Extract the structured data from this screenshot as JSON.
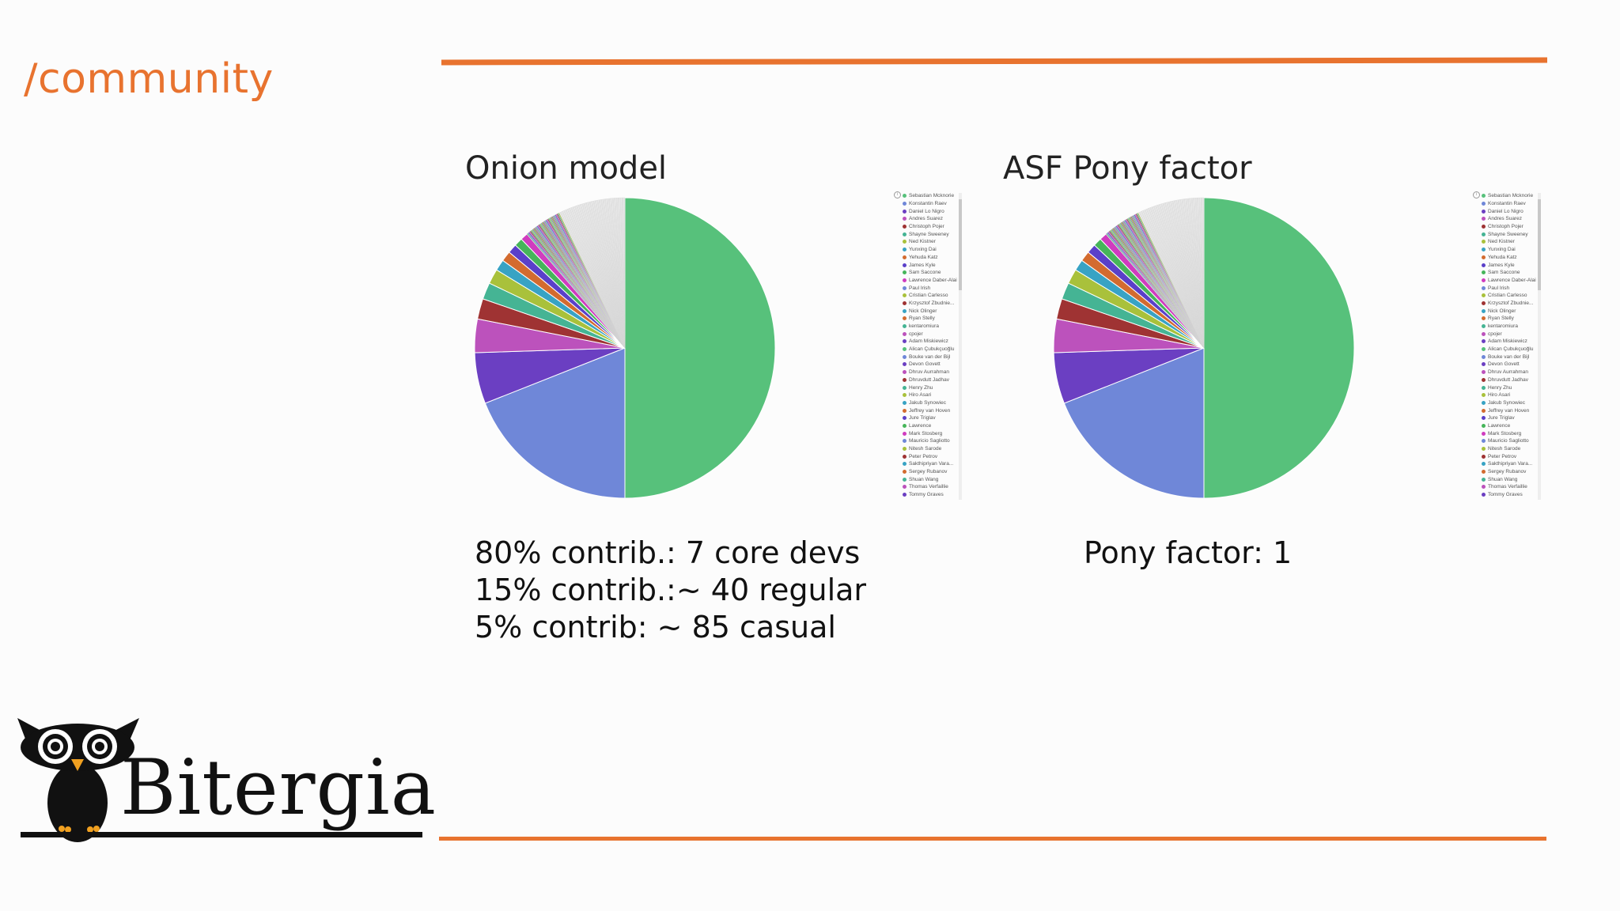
{
  "slide": {
    "title": "/community"
  },
  "colors": {
    "accent": "#e8732f"
  },
  "panels": [
    {
      "title": "Onion model",
      "stats": [
        "80% contrib.: 7 core devs",
        "15% contrib.:~ 40 regular",
        "5% contrib: ~ 85 casual"
      ]
    },
    {
      "title": "ASF Pony factor",
      "stats": [
        "Pony factor: 1"
      ]
    }
  ],
  "chart_data": [
    {
      "type": "pie",
      "title": "Onion model",
      "major_slices": [
        {
          "value": 50.0,
          "color": "#57c17b"
        },
        {
          "value": 19.0,
          "color": "#6f87d8"
        },
        {
          "value": 5.5,
          "color": "#6b3fc2"
        },
        {
          "value": 3.6,
          "color": "#bc52bc"
        },
        {
          "value": 2.2,
          "color": "#9f3333"
        },
        {
          "value": 1.8,
          "color": "#45b494"
        },
        {
          "value": 1.6,
          "color": "#a9c13b"
        },
        {
          "value": 1.2,
          "color": "#38a3c4"
        },
        {
          "value": 1.1,
          "color": "#d36b2f"
        },
        {
          "value": 1.0,
          "color": "#5a40c9"
        },
        {
          "value": 0.9,
          "color": "#46b55a"
        },
        {
          "value": 0.8,
          "color": "#d03cbf"
        }
      ],
      "minor_slice_count": 110,
      "minor_slices_total": 11.3,
      "legend": [
        "Sebastian Mcknorie",
        "Konstantin Raev",
        "Daniel Lo Nigro",
        "Andres Suarez",
        "Christoph Pojer",
        "Shayne Sweeney",
        "Ned Kistner",
        "Yunxing Dai",
        "Yehuda Katz",
        "James Kyle",
        "Sam Saccone",
        "Lawrence Daber-Alai",
        "Paul Irish",
        "Cristian Carlesso",
        "Krzysztof Zbudnie...",
        "Nick Olinger",
        "Ryan Stelly",
        "kentaromiura",
        "cpojer",
        "Adam Miskiewicz",
        "Alican Çubukçuoğlu",
        "Bouke van der Bijl",
        "Devon Govett",
        "Dhruv Aurrahman",
        "Dhruvdutt Jadhav",
        "Henry Zhu",
        "Hiro Asari",
        "Jakub Synowiec",
        "Jeffrey van Hoven",
        "Jure Triglav",
        "Lawrence",
        "Mark Stosberg",
        "Mauricio Sagliotto",
        "Nitesh Sarode",
        "Peter Petrov",
        "Sakthipriyan Vara...",
        "Sergey Rubanov",
        "Shuan Wang",
        "Thomas Verfaillie",
        "Tommy Graves"
      ],
      "legend_colors": [
        "#57c17b",
        "#6f87d8",
        "#6b3fc2",
        "#bc52bc",
        "#9f3333",
        "#45b494",
        "#a9c13b",
        "#38a3c4",
        "#d36b2f",
        "#5a40c9",
        "#46b55a",
        "#d03cbf",
        "#6f87d8",
        "#a9c13b",
        "#9f3333",
        "#38a3c4",
        "#d36b2f",
        "#45b494",
        "#bc52bc",
        "#6b3fc2"
      ]
    },
    {
      "type": "pie",
      "title": "ASF Pony factor",
      "major_slices": [
        {
          "value": 50.0,
          "color": "#57c17b"
        },
        {
          "value": 19.0,
          "color": "#6f87d8"
        },
        {
          "value": 5.5,
          "color": "#6b3fc2"
        },
        {
          "value": 3.6,
          "color": "#bc52bc"
        },
        {
          "value": 2.2,
          "color": "#9f3333"
        },
        {
          "value": 1.8,
          "color": "#45b494"
        },
        {
          "value": 1.6,
          "color": "#a9c13b"
        },
        {
          "value": 1.2,
          "color": "#38a3c4"
        },
        {
          "value": 1.1,
          "color": "#d36b2f"
        },
        {
          "value": 1.0,
          "color": "#5a40c9"
        },
        {
          "value": 0.9,
          "color": "#46b55a"
        },
        {
          "value": 0.8,
          "color": "#d03cbf"
        }
      ],
      "minor_slice_count": 110,
      "minor_slices_total": 11.3,
      "legend": [
        "Sebastian Mcknorie",
        "Konstantin Raev",
        "Daniel Lo Nigro",
        "Andres Suarez",
        "Christoph Pojer",
        "Shayne Sweeney",
        "Ned Kistner",
        "Yunxing Dai",
        "Yehuda Katz",
        "James Kyle",
        "Sam Saccone",
        "Lawrence Daber-Alai",
        "Paul Irish",
        "Cristian Carlesso",
        "Krzysztof Zbudnie...",
        "Nick Olinger",
        "Ryan Stelly",
        "kentaromiura",
        "cpojer",
        "Adam Miskiewicz",
        "Alican Çubukçuoğlu",
        "Bouke van der Bijl",
        "Devon Govett",
        "Dhruv Aurrahman",
        "Dhruvdutt Jadhav",
        "Henry Zhu",
        "Hiro Asari",
        "Jakub Synowiec",
        "Jeffrey van Hoven",
        "Jure Triglav",
        "Lawrence",
        "Mark Stosberg",
        "Mauricio Sagliotto",
        "Nitesh Sarode",
        "Peter Petrov",
        "Sakthipriyan Vara...",
        "Sergey Rubanov",
        "Shuan Wang",
        "Thomas Verfaillie",
        "Tommy Graves"
      ],
      "legend_colors": [
        "#57c17b",
        "#6f87d8",
        "#6b3fc2",
        "#bc52bc",
        "#9f3333",
        "#45b494",
        "#a9c13b",
        "#38a3c4",
        "#d36b2f",
        "#5a40c9",
        "#46b55a",
        "#d03cbf",
        "#6f87d8",
        "#a9c13b",
        "#9f3333",
        "#38a3c4",
        "#d36b2f",
        "#45b494",
        "#bc52bc",
        "#6b3fc2"
      ]
    }
  ],
  "logo": {
    "text": "Bitergia"
  }
}
